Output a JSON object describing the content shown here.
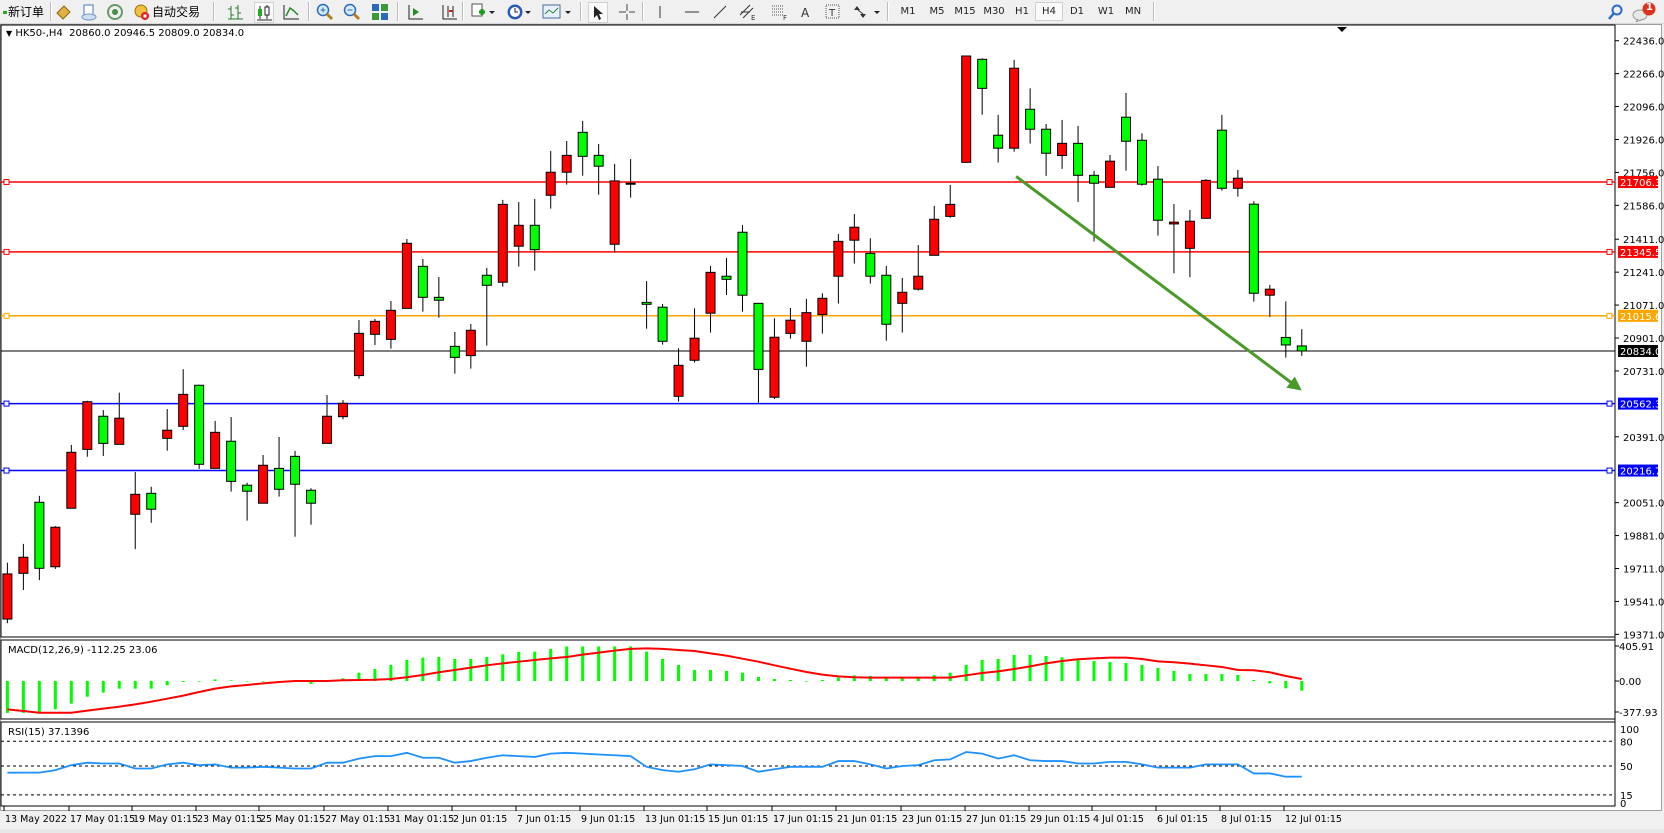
{
  "toolbar": {
    "new_order_label": "新订单",
    "auto_trading_label": "自动交易",
    "timeframes": [
      "M1",
      "M5",
      "M15",
      "M30",
      "H1",
      "H4",
      "D1",
      "W1",
      "MN"
    ],
    "active_timeframe": "H4",
    "notification_count": "1",
    "icons": [
      "new-order-icon",
      "market-watch-icon",
      "navigator-icon",
      "signals-icon",
      "auto-trading-icon",
      "bar-chart-icon",
      "candlestick-icon",
      "line-chart-icon",
      "zoom-in-icon",
      "zoom-out-icon",
      "tile-windows-icon",
      "autoscroll-icon",
      "chart-shift-icon",
      "add-indicator-icon",
      "periods-icon",
      "templates-icon",
      "cursor-icon",
      "crosshair-icon",
      "vertical-line-icon",
      "horizontal-line-icon",
      "trendline-icon",
      "equidistant-channel-icon",
      "fibonacci-icon",
      "text-icon",
      "text-label-icon",
      "arrows-icon",
      "search-icon",
      "notification-icon"
    ]
  },
  "chart": {
    "header": "HK50-,H4  20860.0 20946.5 20809.0 20834.0",
    "macd_label": "MACD(12,26,9) -112.25 23.06",
    "rsi_label": "RSI(15) 37.1396"
  },
  "chart_data": {
    "type": "candlestick",
    "symbol": "HK50-",
    "timeframe": "H4",
    "ohlc_header": {
      "open": 20860.0,
      "high": 20946.5,
      "low": 20809.0,
      "close": 20834.0
    },
    "colors": {
      "bull": "#ff0000",
      "bear": "#00ff00",
      "macd_hist": "#00ff00",
      "macd_signal": "#ff0000",
      "rsi": "#1e90ff"
    },
    "candles": [
      [
        19450,
        19741,
        19429,
        19683
      ],
      [
        19686,
        19838,
        19600,
        19769
      ],
      [
        20053,
        20086,
        19651,
        19712
      ],
      [
        19720,
        19930,
        19709,
        19924
      ],
      [
        20022,
        20349,
        20022,
        20311
      ],
      [
        20326,
        20577,
        20288,
        20572
      ],
      [
        20497,
        20529,
        20292,
        20357
      ],
      [
        20352,
        20619,
        20352,
        20487
      ],
      [
        19991,
        20209,
        19811,
        20094
      ],
      [
        20099,
        20133,
        19947,
        20017
      ],
      [
        20383,
        20534,
        20319,
        20425
      ],
      [
        20445,
        20740,
        20426,
        20610
      ],
      [
        20657,
        20660,
        20225,
        20249
      ],
      [
        20228,
        20473,
        20228,
        20414
      ],
      [
        20368,
        20493,
        20108,
        20161
      ],
      [
        20141,
        20154,
        19958,
        20110
      ],
      [
        20048,
        20297,
        20048,
        20244
      ],
      [
        20228,
        20390,
        20082,
        20120
      ],
      [
        20290,
        20318,
        19875,
        20146
      ],
      [
        20115,
        20125,
        19937,
        20048
      ],
      [
        20357,
        20607,
        20357,
        20497
      ],
      [
        20495,
        20581,
        20481,
        20564
      ],
      [
        20707,
        20994,
        20691,
        20925
      ],
      [
        20920,
        20999,
        20865,
        20987
      ],
      [
        20894,
        21092,
        20846,
        21044
      ],
      [
        21054,
        21412,
        21054,
        21390
      ],
      [
        21271,
        21309,
        21037,
        21111
      ],
      [
        21111,
        21216,
        21006,
        21096
      ],
      [
        20858,
        20932,
        20717,
        20801
      ],
      [
        20810,
        20973,
        20743,
        20941
      ],
      [
        21225,
        21263,
        20862,
        21173
      ],
      [
        21189,
        21614,
        21166,
        21591
      ],
      [
        21375,
        21603,
        21270,
        21483
      ],
      [
        21483,
        21619,
        21249,
        21357
      ],
      [
        21638,
        21867,
        21569,
        21757
      ],
      [
        21757,
        21918,
        21693,
        21844
      ],
      [
        21963,
        22022,
        21739,
        21839
      ],
      [
        21844,
        21903,
        21641,
        21788
      ],
      [
        21385,
        21800,
        21342,
        21712
      ],
      [
        21700,
        21825,
        21626,
        21696
      ],
      [
        21085,
        21195,
        20949,
        21075
      ],
      [
        21060,
        21077,
        20867,
        20884
      ],
      [
        20600,
        20848,
        20573,
        20760
      ],
      [
        20786,
        21054,
        20774,
        20900
      ],
      [
        21029,
        21273,
        20929,
        21240
      ],
      [
        21220,
        21314,
        21123,
        21204
      ],
      [
        21447,
        21485,
        21037,
        21122
      ],
      [
        21080,
        21080,
        20567,
        20739
      ],
      [
        20595,
        21003,
        20586,
        20905
      ],
      [
        20925,
        21056,
        20898,
        20993
      ],
      [
        20884,
        21103,
        20753,
        21032
      ],
      [
        21022,
        21132,
        20924,
        21106
      ],
      [
        21220,
        21438,
        21079,
        21400
      ],
      [
        21406,
        21541,
        21285,
        21473
      ],
      [
        21338,
        21416,
        21182,
        21220
      ],
      [
        21225,
        21273,
        20887,
        20972
      ],
      [
        21080,
        21211,
        20929,
        21137
      ],
      [
        21153,
        21381,
        21146,
        21220
      ],
      [
        21328,
        21583,
        21328,
        21514
      ],
      [
        21529,
        21691,
        21522,
        21591
      ],
      [
        21808,
        22357,
        21808,
        22357
      ],
      [
        22340,
        22345,
        22054,
        22190
      ],
      [
        21948,
        22053,
        21807,
        21881
      ],
      [
        21881,
        22337,
        21863,
        22294
      ],
      [
        22082,
        22190,
        21905,
        21979
      ],
      [
        21979,
        22006,
        21738,
        21855
      ],
      [
        21843,
        22027,
        21774,
        21906
      ],
      [
        21906,
        21996,
        21604,
        21741
      ],
      [
        21741,
        21764,
        21399,
        21700
      ],
      [
        21679,
        21846,
        21679,
        21814
      ],
      [
        22041,
        22166,
        21765,
        21917
      ],
      [
        21922,
        21958,
        21688,
        21695
      ],
      [
        21721,
        21789,
        21430,
        21509
      ],
      [
        21490,
        21593,
        21235,
        21499
      ],
      [
        21364,
        21562,
        21215,
        21504
      ],
      [
        21519,
        21721,
        21519,
        21715
      ],
      [
        21974,
        22053,
        21662,
        21674
      ],
      [
        21674,
        21769,
        21631,
        21726
      ],
      [
        21592,
        21607,
        21089,
        21132
      ],
      [
        21122,
        21175,
        21010,
        21153
      ],
      [
        20904,
        21090,
        20800,
        20865
      ],
      [
        20860,
        20946.5,
        20809,
        20834
      ]
    ],
    "price_range": [
      19371,
      22436
    ],
    "price_ticks": [
      "22436.0",
      "22266.0",
      "22096.0",
      "21926.0",
      "21756.0",
      "21586.0",
      "21411.0",
      "21241.0",
      "21071.0",
      "20901.0",
      "20731.0",
      "20391.0",
      "20051.0",
      "19881.0",
      "19711.0",
      "19541.0",
      "19371.0"
    ],
    "horizontal_lines": [
      {
        "price": 21706.3,
        "label": "21706.3",
        "color": "#ff0000"
      },
      {
        "price": 21345.5,
        "label": "21345.5",
        "color": "#ff0000"
      },
      {
        "price": 21015.6,
        "label": "21015.6",
        "color": "#ffa500"
      },
      {
        "price": 20834.0,
        "label": "20834.0",
        "color": "#000000"
      },
      {
        "price": 20562.3,
        "label": "20562.3",
        "color": "#0000ff"
      },
      {
        "price": 20216.7,
        "label": "20216.7",
        "color": "#0000ff"
      }
    ],
    "trend_arrow": {
      "from": {
        "candle": 64,
        "price": 21735
      },
      "to": {
        "candle": 82,
        "price": 20630
      },
      "color": "#4a9a2a"
    },
    "x_tick_labels": [
      "13 May 2022",
      "17 May 01:15",
      "19 May 01:15",
      "23 May 01:15",
      "25 May 01:15",
      "27 May 01:15",
      "31 May 01:15",
      "2 Jun 01:15",
      "7 Jun 01:15",
      "9 Jun 01:15",
      "13 Jun 01:15",
      "15 Jun 01:15",
      "17 Jun 01:15",
      "21 Jun 01:15",
      "23 Jun 01:15",
      "27 Jun 01:15",
      "29 Jun 01:15",
      "4 Jul 01:15",
      "6 Jul 01:15",
      "8 Jul 01:15",
      "12 Jul 01:15"
    ],
    "macd": {
      "range": [
        -377.93,
        405.91
      ],
      "ticks": [
        "405.91",
        "0.00",
        "-377.93"
      ],
      "histogram": [
        -380,
        -375,
        -364,
        -329,
        -263,
        -182,
        -135,
        -89,
        -89,
        -89,
        -50,
        -12,
        -8,
        19,
        8,
        0,
        0,
        0,
        0,
        -35,
        0,
        31,
        97,
        139,
        186,
        244,
        271,
        279,
        255,
        255,
        279,
        310,
        337,
        341,
        372,
        406,
        418,
        433,
        418,
        406,
        341,
        255,
        186,
        128,
        128,
        116,
        97,
        46,
        23,
        12,
        -4,
        12,
        39,
        66,
        58,
        31,
        31,
        31,
        70,
        97,
        186,
        244,
        255,
        302,
        302,
        290,
        275,
        244,
        232,
        221,
        209,
        186,
        151,
        116,
        81,
        81,
        81,
        70,
        12,
        -27,
        -85,
        -112.25
      ],
      "signal": [
        -329,
        -348,
        -368,
        -368,
        -368,
        -344,
        -321,
        -298,
        -271,
        -240,
        -205,
        -170,
        -128,
        -89,
        -62,
        -46,
        -27,
        -12,
        0,
        0,
        0,
        8,
        12,
        15,
        23,
        43,
        70,
        101,
        128,
        155,
        182,
        205,
        224,
        244,
        263,
        279,
        306,
        329,
        352,
        372,
        379,
        372,
        360,
        348,
        321,
        294,
        259,
        224,
        182,
        143,
        104,
        74,
        54,
        43,
        39,
        39,
        39,
        39,
        39,
        39,
        66,
        93,
        112,
        139,
        170,
        205,
        232,
        252,
        263,
        271,
        271,
        255,
        228,
        217,
        201,
        182,
        163,
        128,
        124,
        101,
        58,
        23.06
      ]
    },
    "rsi": {
      "range": [
        0,
        100
      ],
      "ticks": [
        "100",
        "80",
        "50",
        "15",
        "0"
      ],
      "levels": [
        80,
        50,
        15
      ],
      "values": [
        41.9,
        42,
        42,
        45,
        51,
        54,
        53,
        53,
        47,
        47,
        52,
        54,
        51,
        52,
        48,
        48,
        49,
        48,
        47,
        47,
        54,
        54,
        59,
        62,
        62,
        66,
        60,
        60,
        54,
        56,
        60,
        63,
        62,
        61,
        65,
        66,
        65,
        64,
        63,
        62,
        49,
        45,
        43,
        46,
        52,
        51,
        50,
        43,
        46,
        49,
        49,
        49,
        56,
        56,
        52,
        47,
        50,
        51,
        57,
        58,
        67,
        65,
        59,
        63,
        57,
        56,
        56,
        53,
        53,
        55,
        55,
        52,
        48,
        48,
        48,
        52,
        52,
        52,
        41,
        41,
        37,
        37.14
      ]
    }
  }
}
